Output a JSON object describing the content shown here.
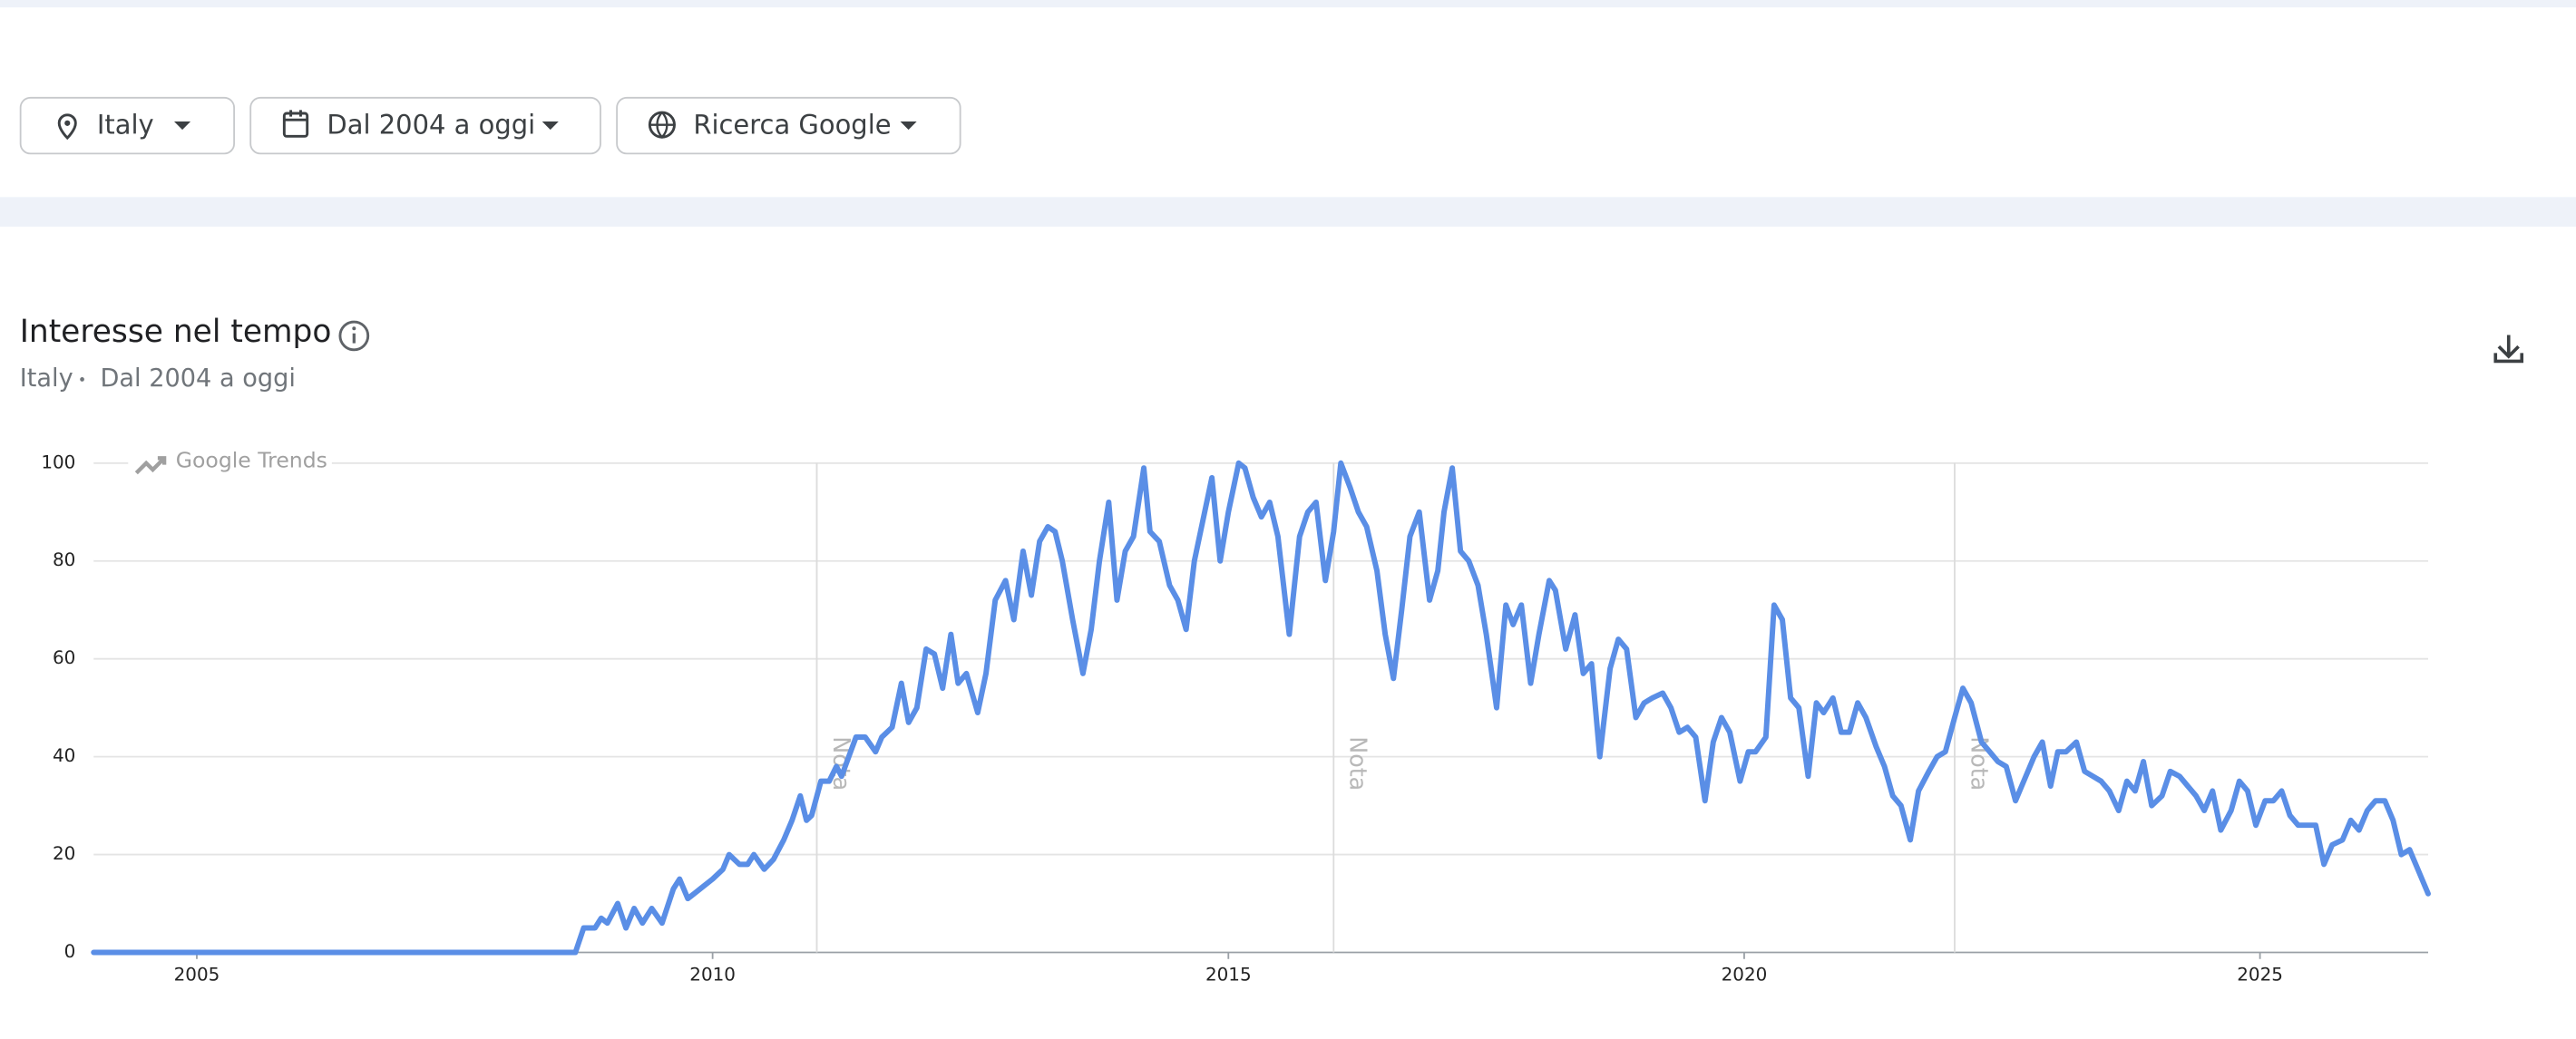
{
  "filters": {
    "location": "Italy",
    "period": "Dal 2004 a oggi",
    "property": "Ricerca Google"
  },
  "header": {
    "title": "Interesse nel tempo",
    "subtitle": [
      "Italy",
      "Dal 2004 a oggi"
    ]
  },
  "chart_data": {
    "type": "line",
    "watermark": "Google Trends",
    "color": "#5a8ee6",
    "grid": true,
    "xlim": [
      2004,
      2026.63
    ],
    "xticks": [
      2005,
      2010,
      2015,
      2020,
      2025
    ],
    "ylim": [
      0,
      100
    ],
    "yticks": [
      0,
      20,
      40,
      60,
      80,
      100
    ],
    "notes": [
      {
        "x": 2011.01,
        "label": "Nota"
      },
      {
        "x": 2016.02,
        "label": "Nota"
      },
      {
        "x": 2022.04,
        "label": "Nota"
      }
    ],
    "x": [
      2004.0,
      2008.67,
      2008.75,
      2008.86,
      2008.92,
      2008.98,
      2009.08,
      2009.16,
      2009.24,
      2009.32,
      2009.41,
      2009.51,
      2009.62,
      2009.68,
      2009.76,
      2009.88,
      2010.0,
      2010.1,
      2010.16,
      2010.26,
      2010.34,
      2010.4,
      2010.5,
      2010.59,
      2010.69,
      2010.77,
      2010.85,
      2010.91,
      2010.96,
      2011.05,
      2011.13,
      2011.2,
      2011.25,
      2011.32,
      2011.39,
      2011.48,
      2011.58,
      2011.64,
      2011.74,
      2011.83,
      2011.9,
      2011.98,
      2012.07,
      2012.15,
      2012.23,
      2012.31,
      2012.38,
      2012.46,
      2012.57,
      2012.65,
      2012.74,
      2012.84,
      2012.92,
      2013.01,
      2013.09,
      2013.17,
      2013.25,
      2013.32,
      2013.39,
      2013.49,
      2013.59,
      2013.67,
      2013.75,
      2013.84,
      2013.92,
      2014.0,
      2014.08,
      2014.18,
      2014.24,
      2014.33,
      2014.43,
      2014.51,
      2014.59,
      2014.67,
      2014.75,
      2014.84,
      2014.92,
      2015.0,
      2015.1,
      2015.16,
      2015.24,
      2015.32,
      2015.4,
      2015.48,
      2015.59,
      2015.69,
      2015.77,
      2015.85,
      2015.94,
      2016.02,
      2016.09,
      2016.18,
      2016.26,
      2016.34,
      2016.44,
      2016.52,
      2016.6,
      2016.68,
      2016.76,
      2016.85,
      2016.95,
      2017.03,
      2017.09,
      2017.17,
      2017.25,
      2017.33,
      2017.42,
      2017.5,
      2017.6,
      2017.69,
      2017.76,
      2017.84,
      2017.93,
      2018.01,
      2018.11,
      2018.17,
      2018.27,
      2018.36,
      2018.44,
      2018.52,
      2018.6,
      2018.7,
      2018.78,
      2018.86,
      2018.95,
      2019.03,
      2019.11,
      2019.21,
      2019.29,
      2019.37,
      2019.45,
      2019.53,
      2019.62,
      2019.7,
      2019.78,
      2019.86,
      2019.96,
      2020.04,
      2020.11,
      2020.21,
      2020.29,
      2020.37,
      2020.45,
      2020.53,
      2020.62,
      2020.7,
      2020.77,
      2020.86,
      2020.94,
      2021.02,
      2021.1,
      2021.18,
      2021.28,
      2021.36,
      2021.44,
      2021.52,
      2021.61,
      2021.69,
      2021.79,
      2021.87,
      2021.95,
      2022.04,
      2022.12,
      2022.2,
      2022.3,
      2022.38,
      2022.46,
      2022.54,
      2022.63,
      2022.71,
      2022.81,
      2022.89,
      2022.97,
      2023.04,
      2023.12,
      2023.22,
      2023.3,
      2023.38,
      2023.46,
      2023.54,
      2023.63,
      2023.71,
      2023.79,
      2023.87,
      2023.95,
      2024.05,
      2024.13,
      2024.22,
      2024.3,
      2024.38,
      2024.46,
      2024.54,
      2024.62,
      2024.72,
      2024.8,
      2024.88,
      2024.96,
      2025.05,
      2025.13,
      2025.21,
      2025.29,
      2025.37,
      2025.46,
      2025.54,
      2025.62,
      2025.7,
      2025.8,
      2025.88,
      2025.96,
      2026.04,
      2026.12,
      2026.21,
      2026.29,
      2026.37,
      2026.45,
      2026.53,
      2026.63
    ],
    "values": [
      0,
      0,
      5,
      5,
      7,
      6,
      10,
      5,
      9,
      6,
      9,
      6,
      13,
      15,
      11,
      13,
      15,
      17,
      20,
      18,
      18,
      20,
      17,
      19,
      23,
      27,
      32,
      27,
      28,
      35,
      35,
      38,
      36,
      40,
      44,
      44,
      41,
      44,
      46,
      55,
      47,
      50,
      62,
      61,
      54,
      65,
      55,
      57,
      49,
      57,
      72,
      76,
      68,
      82,
      73,
      84,
      87,
      86,
      80,
      68,
      57,
      66,
      80,
      92,
      72,
      82,
      85,
      99,
      86,
      84,
      75,
      72,
      66,
      80,
      88,
      97,
      80,
      90,
      100,
      99,
      93,
      89,
      92,
      85,
      65,
      85,
      90,
      92,
      76,
      86,
      100,
      95,
      90,
      87,
      78,
      65,
      56,
      70,
      85,
      90,
      72,
      78,
      90,
      99,
      82,
      80,
      75,
      65,
      50,
      71,
      67,
      71,
      55,
      65,
      76,
      74,
      62,
      69,
      57,
      59,
      40,
      58,
      64,
      62,
      48,
      51,
      52,
      53,
      50,
      45,
      46,
      44,
      31,
      43,
      48,
      45,
      35,
      41,
      41,
      44,
      71,
      68,
      52,
      50,
      36,
      51,
      49,
      52,
      45,
      45,
      51,
      48,
      42,
      38,
      32,
      30,
      23,
      33,
      37,
      40,
      41,
      48,
      54,
      51,
      43,
      41,
      39,
      38,
      31,
      35,
      40,
      43,
      34,
      41,
      41,
      43,
      37,
      36,
      35,
      33,
      29,
      35,
      33,
      39,
      30,
      32,
      37,
      36,
      34,
      32,
      29,
      33,
      25,
      29,
      35,
      33,
      26,
      31,
      31,
      33,
      28,
      26,
      26,
      26,
      18,
      22,
      23,
      27,
      25,
      29,
      31,
      31,
      27,
      20,
      21,
      17,
      12
    ]
  }
}
